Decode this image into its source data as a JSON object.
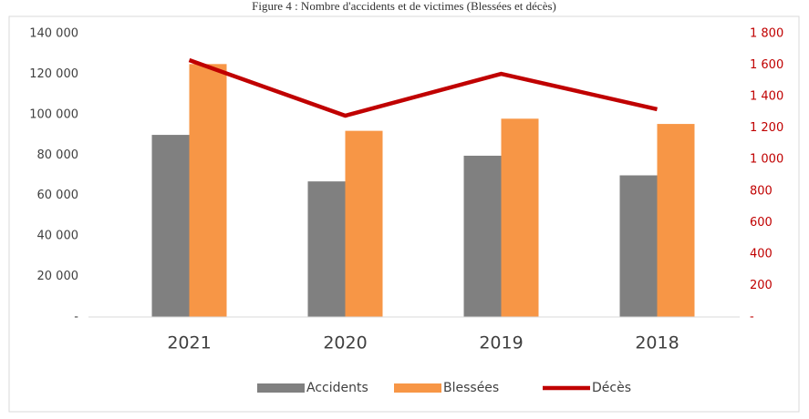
{
  "chart_data": {
    "type": "bar_line",
    "title": "Figure 4 : Nombre d'accidents et de victimes (Blessées et décès)",
    "categories": [
      "2021",
      "2020",
      "2019",
      "2018"
    ],
    "series": [
      {
        "name": "Accidents",
        "color": "#808080",
        "type": "bar",
        "values": [
          90000,
          67000,
          79700,
          70000
        ]
      },
      {
        "name": "Blessées",
        "color": "#f79646",
        "type": "bar",
        "values": [
          125000,
          92000,
          98000,
          95400
        ]
      },
      {
        "name": "Décès",
        "color": "#c00000",
        "type": "line",
        "axis": "y2",
        "values": [
          1632,
          1279,
          1545,
          1320
        ]
      }
    ],
    "ylim": [
      0,
      140000
    ],
    "yticks": [
      {
        "value": 0,
        "label": "-"
      },
      {
        "value": 20000,
        "label": "20 000"
      },
      {
        "value": 40000,
        "label": "40 000"
      },
      {
        "value": 60000,
        "label": "60 000"
      },
      {
        "value": 80000,
        "label": "80 000"
      },
      {
        "value": 100000,
        "label": "100 000"
      },
      {
        "value": 120000,
        "label": "120 000"
      },
      {
        "value": 140000,
        "label": "140 000"
      }
    ],
    "y2lim": [
      0,
      1800
    ],
    "y2ticks": [
      {
        "value": 0,
        "label": "-"
      },
      200,
      400,
      600,
      800,
      {
        "value": 1000,
        "label": "1 000"
      },
      {
        "value": 1200,
        "label": "1 200"
      },
      {
        "value": 1400,
        "label": "1 400"
      },
      {
        "value": 1600,
        "label": "1 600"
      },
      {
        "value": 1800,
        "label": "1 800"
      }
    ],
    "legend": "bottom"
  }
}
